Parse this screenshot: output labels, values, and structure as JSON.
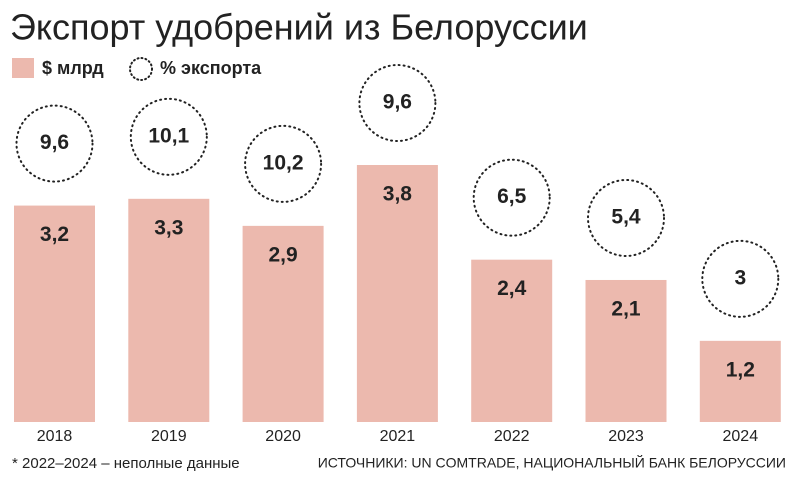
{
  "chart_data": {
    "type": "bar",
    "title": "Экспорт удобрений из Белоруссии",
    "categories": [
      "2018",
      "2019",
      "2020",
      "2021",
      "2022",
      "2023",
      "2024"
    ],
    "series": [
      {
        "name": "$ млрд",
        "color": "#ecb9ae",
        "values": [
          3.2,
          3.3,
          2.9,
          3.8,
          2.4,
          2.1,
          1.2
        ],
        "value_labels": [
          "3,2",
          "3,3",
          "2,9",
          "3,8",
          "2,4",
          "2,1",
          "1,2"
        ]
      },
      {
        "name": "% экспорта",
        "color": "#222222",
        "values": [
          9.6,
          10.1,
          10.2,
          9.6,
          6.5,
          5.4,
          3
        ],
        "value_labels": [
          "9,6",
          "10,1",
          "10,2",
          "9,6",
          "6,5",
          "5,4",
          "3"
        ]
      }
    ],
    "footnote": "* 2022–2024 – неполные данные",
    "source": "ИСТОЧНИКИ: UN COMTRADE, НАЦИОНАЛЬНЫЙ БАНК БЕЛОРУССИИ"
  }
}
